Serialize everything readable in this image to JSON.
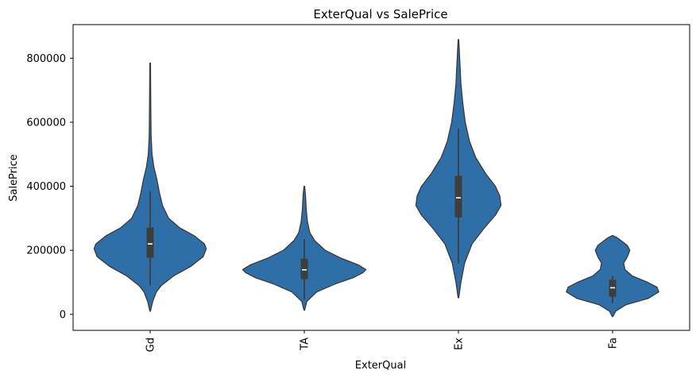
{
  "chart_data": {
    "type": "violin",
    "title": "ExterQual vs SalePrice",
    "xlabel": "ExterQual",
    "ylabel": "SalePrice",
    "ylim": [
      -50000,
      905000
    ],
    "yticks": [
      0,
      200000,
      400000,
      600000,
      800000
    ],
    "ytick_labels": [
      "0",
      "200000",
      "400000",
      "600000",
      "800000"
    ],
    "categories": [
      "Gd",
      "TA",
      "Ex",
      "Fa"
    ],
    "fill_color": "#2f6fa8",
    "edge_color": "#3a3a3a",
    "box_color": "#3d3d3d",
    "violins": [
      {
        "category": "Gd",
        "min": 10000,
        "max": 785000,
        "q1": 177000,
        "median": 220000,
        "q3": 271000,
        "whisker_low": 90000,
        "whisker_high": 385000,
        "profile": [
          [
            10000,
            0.005
          ],
          [
            40000,
            0.04
          ],
          [
            70000,
            0.1
          ],
          [
            90000,
            0.18
          ],
          [
            120000,
            0.38
          ],
          [
            150000,
            0.66
          ],
          [
            180000,
            0.86
          ],
          [
            205000,
            0.91
          ],
          [
            220000,
            0.88
          ],
          [
            245000,
            0.72
          ],
          [
            270000,
            0.48
          ],
          [
            300000,
            0.3
          ],
          [
            340000,
            0.2
          ],
          [
            380000,
            0.15
          ],
          [
            420000,
            0.11
          ],
          [
            460000,
            0.06
          ],
          [
            500000,
            0.03
          ],
          [
            560000,
            0.015
          ],
          [
            650000,
            0.01
          ],
          [
            785000,
            0.005
          ]
        ]
      },
      {
        "category": "TA",
        "min": 13000,
        "max": 400000,
        "q1": 110000,
        "median": 139000,
        "q3": 174000,
        "whisker_low": 45000,
        "whisker_high": 235000,
        "profile": [
          [
            13000,
            0.005
          ],
          [
            40000,
            0.04
          ],
          [
            70000,
            0.2
          ],
          [
            95000,
            0.5
          ],
          [
            115000,
            0.8
          ],
          [
            130000,
            0.95
          ],
          [
            140000,
            1.0
          ],
          [
            155000,
            0.87
          ],
          [
            175000,
            0.6
          ],
          [
            200000,
            0.34
          ],
          [
            230000,
            0.17
          ],
          [
            255000,
            0.09
          ],
          [
            290000,
            0.05
          ],
          [
            330000,
            0.03
          ],
          [
            370000,
            0.02
          ],
          [
            400000,
            0.005
          ]
        ]
      },
      {
        "category": "Ex",
        "min": 52000,
        "max": 858000,
        "q1": 303000,
        "median": 364000,
        "q3": 433000,
        "whisker_low": 160000,
        "whisker_high": 580000,
        "profile": [
          [
            52000,
            0.005
          ],
          [
            100000,
            0.04
          ],
          [
            160000,
            0.1
          ],
          [
            220000,
            0.22
          ],
          [
            270000,
            0.42
          ],
          [
            310000,
            0.6
          ],
          [
            340000,
            0.69
          ],
          [
            370000,
            0.67
          ],
          [
            400000,
            0.6
          ],
          [
            440000,
            0.44
          ],
          [
            490000,
            0.28
          ],
          [
            540000,
            0.18
          ],
          [
            600000,
            0.11
          ],
          [
            660000,
            0.07
          ],
          [
            720000,
            0.04
          ],
          [
            780000,
            0.025
          ],
          [
            858000,
            0.005
          ]
        ]
      },
      {
        "category": "Fa",
        "min": -7000,
        "max": 246000,
        "q1": 55000,
        "median": 83000,
        "q3": 108000,
        "whisker_low": 35000,
        "whisker_high": 120000,
        "profile": [
          [
            -7000,
            0.005
          ],
          [
            10000,
            0.05
          ],
          [
            30000,
            0.22
          ],
          [
            50000,
            0.58
          ],
          [
            70000,
            0.75
          ],
          [
            85000,
            0.72
          ],
          [
            100000,
            0.57
          ],
          [
            120000,
            0.32
          ],
          [
            140000,
            0.2
          ],
          [
            160000,
            0.18
          ],
          [
            180000,
            0.24
          ],
          [
            200000,
            0.28
          ],
          [
            215000,
            0.24
          ],
          [
            230000,
            0.14
          ],
          [
            240000,
            0.07
          ],
          [
            246000,
            0.005
          ]
        ]
      }
    ]
  }
}
